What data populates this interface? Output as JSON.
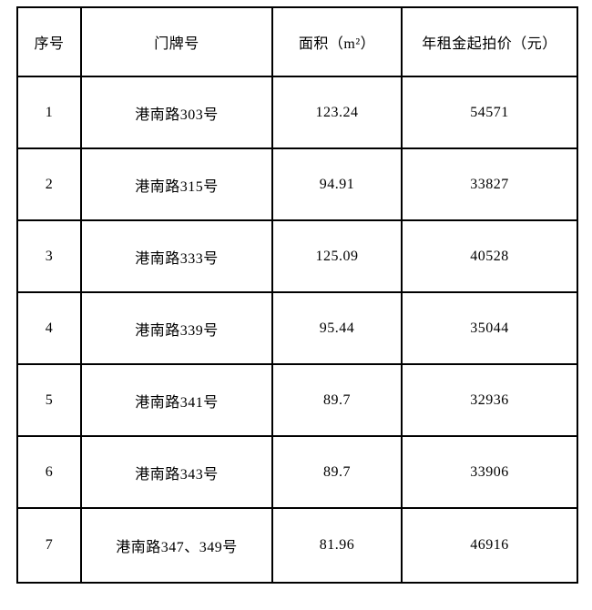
{
  "table": {
    "headers": {
      "index": "序号",
      "address": "门牌号",
      "area": "面积（m²）",
      "price": "年租金起拍价（元）"
    },
    "rows": [
      {
        "index": "1",
        "address": "港南路303号",
        "area": "123.24",
        "price": "54571"
      },
      {
        "index": "2",
        "address": "港南路315号",
        "area": "94.91",
        "price": "33827"
      },
      {
        "index": "3",
        "address": "港南路333号",
        "area": "125.09",
        "price": "40528"
      },
      {
        "index": "4",
        "address": "港南路339号",
        "area": "95.44",
        "price": "35044"
      },
      {
        "index": "5",
        "address": "港南路341号",
        "area": "89.7",
        "price": "32936"
      },
      {
        "index": "6",
        "address": "港南路343号",
        "area": "89.7",
        "price": "33906"
      },
      {
        "index": "7",
        "address": "港南路347、349号",
        "area": "81.96",
        "price": "46916"
      }
    ]
  },
  "colors": {
    "border": "#000000",
    "text": "#000000",
    "background": "#ffffff"
  }
}
